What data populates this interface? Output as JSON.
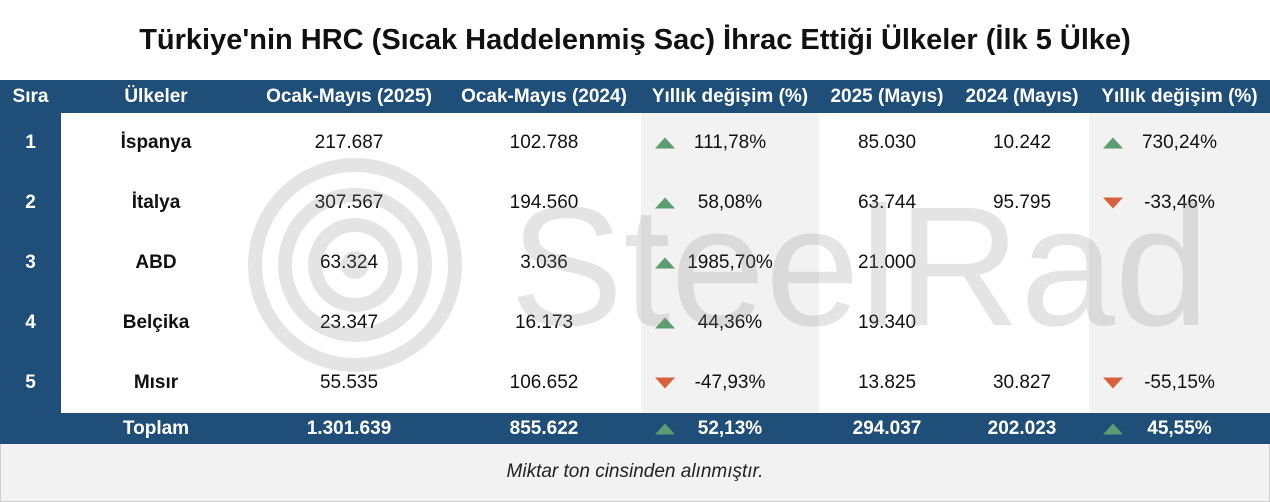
{
  "title": "Türkiye'nin HRC (Sıcak Haddelenmiş Sac) İhrac Ettiği Ülkeler (İlk 5 Ülke)",
  "headers": [
    "Sıra",
    "Ülkeler",
    "Ocak-Mayıs (2025)",
    "Ocak-Mayıs (2024)",
    "Yıllık değişim (%)",
    "2025 (Mayıs)",
    "2024 (Mayıs)",
    "Yıllık değişim (%)"
  ],
  "rows": [
    {
      "rank": "1",
      "country": "İspanya",
      "ytd2025": "217.687",
      "ytd2024": "102.788",
      "ytd_change": "111,78%",
      "ytd_dir": "up",
      "may2025": "85.030",
      "may2024": "10.242",
      "may_change": "730,24%",
      "may_dir": "up"
    },
    {
      "rank": "2",
      "country": "İtalya",
      "ytd2025": "307.567",
      "ytd2024": "194.560",
      "ytd_change": "58,08%",
      "ytd_dir": "up",
      "may2025": "63.744",
      "may2024": "95.795",
      "may_change": "-33,46%",
      "may_dir": "down"
    },
    {
      "rank": "3",
      "country": "ABD",
      "ytd2025": "63.324",
      "ytd2024": "3.036",
      "ytd_change": "1985,70%",
      "ytd_dir": "up",
      "may2025": "21.000",
      "may2024": "",
      "may_change": "",
      "may_dir": ""
    },
    {
      "rank": "4",
      "country": "Belçika",
      "ytd2025": "23.347",
      "ytd2024": "16.173",
      "ytd_change": "44,36%",
      "ytd_dir": "up",
      "may2025": "19.340",
      "may2024": "",
      "may_change": "",
      "may_dir": ""
    },
    {
      "rank": "5",
      "country": "Mısır",
      "ytd2025": "55.535",
      "ytd2024": "106.652",
      "ytd_change": "-47,93%",
      "ytd_dir": "down",
      "may2025": "13.825",
      "may2024": "30.827",
      "may_change": "-55,15%",
      "may_dir": "down"
    }
  ],
  "total": {
    "label": "Toplam",
    "ytd2025": "1.301.639",
    "ytd2024": "855.622",
    "ytd_change": "52,13%",
    "ytd_dir": "up",
    "may2025": "294.037",
    "may2024": "202.023",
    "may_change": "45,55%",
    "may_dir": "up"
  },
  "note": "Miktar ton cinsinden alınmıştır.",
  "watermark": "SteelRadar",
  "colors": {
    "header_bg": "#1f4e79",
    "up": "#5a9e6f",
    "down": "#d9603b"
  }
}
